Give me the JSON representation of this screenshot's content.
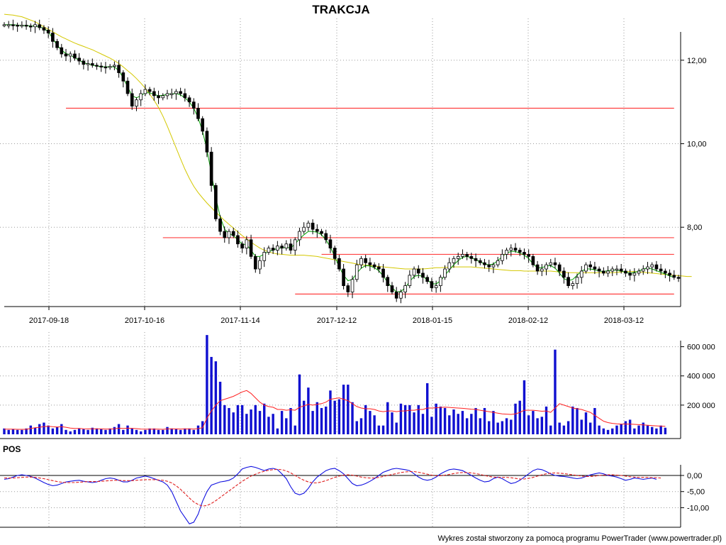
{
  "chart_data": [
    {
      "type": "candlestick",
      "title": "TRAKCJA",
      "x_tick_labels": [
        "2017-09-18",
        "2017-10-16",
        "2017-11-14",
        "2017-12-12",
        "2018-01-15",
        "2018-02-12",
        "2018-03-12"
      ],
      "y_tick_labels": [
        "12,00",
        "10,00",
        "8,00"
      ],
      "y_ticks": [
        12,
        10,
        8
      ],
      "ylim": [
        6.1,
        13.0
      ],
      "grid": true,
      "up_color": "#ffffff",
      "down_color": "#000000",
      "ma_short_color": "#00a000",
      "ma_long_color": "#d4c800",
      "support_resistance_color": "#ff4040",
      "horizontal_levels": [
        {
          "value": 10.85,
          "from_bar": 14,
          "to_bar": 152
        },
        {
          "value": 7.75,
          "from_bar": 36,
          "to_bar": 152
        },
        {
          "value": 7.35,
          "from_bar": 72,
          "to_bar": 152
        },
        {
          "value": 6.4,
          "from_bar": 66,
          "to_bar": 152
        }
      ],
      "closes": [
        12.85,
        12.85,
        12.84,
        12.83,
        12.84,
        12.82,
        12.8,
        12.85,
        12.78,
        12.72,
        12.65,
        12.45,
        12.3,
        12.15,
        12.1,
        12.15,
        12.05,
        11.98,
        11.9,
        11.92,
        11.88,
        11.86,
        11.84,
        11.83,
        11.85,
        11.88,
        11.7,
        11.5,
        11.2,
        10.9,
        11.05,
        11.2,
        11.3,
        11.25,
        11.15,
        11.1,
        11.15,
        11.2,
        11.2,
        11.25,
        11.2,
        11.1,
        11.0,
        10.85,
        10.6,
        10.3,
        9.8,
        9.0,
        8.2,
        7.9,
        7.75,
        7.9,
        7.8,
        7.6,
        7.5,
        7.7,
        7.3,
        7.0,
        7.2,
        7.4,
        7.5,
        7.45,
        7.55,
        7.5,
        7.6,
        7.45,
        7.7,
        7.9,
        8.0,
        8.1,
        7.95,
        7.9,
        7.85,
        7.7,
        7.5,
        7.25,
        7.0,
        6.6,
        6.45,
        6.75,
        7.1,
        7.25,
        7.15,
        7.1,
        7.05,
        7.0,
        6.8,
        6.6,
        6.45,
        6.3,
        6.45,
        6.6,
        6.85,
        7.0,
        6.9,
        6.8,
        6.7,
        6.55,
        6.6,
        6.8,
        7.0,
        7.15,
        7.25,
        7.3,
        7.35,
        7.3,
        7.25,
        7.2,
        7.15,
        7.1,
        7.05,
        7.1,
        7.2,
        7.35,
        7.45,
        7.5,
        7.45,
        7.4,
        7.35,
        7.3,
        7.1,
        6.95,
        7.0,
        7.1,
        7.15,
        7.1,
        6.95,
        6.8,
        6.6,
        6.65,
        6.8,
        6.95,
        7.1,
        7.05,
        7.0,
        6.95,
        6.9,
        6.95,
        7.0,
        7.0,
        6.95,
        6.9,
        6.85,
        6.9,
        6.95,
        7.0,
        7.05,
        7.1,
        7.0,
        6.95,
        6.9,
        6.85,
        6.8,
        6.78
      ],
      "ma_short": [
        12.85,
        12.85,
        12.85,
        12.84,
        12.83,
        12.83,
        12.82,
        12.82,
        12.8,
        12.76,
        12.68,
        12.52,
        12.36,
        12.24,
        12.16,
        12.12,
        12.06,
        12.0,
        11.94,
        11.91,
        11.88,
        11.86,
        11.85,
        11.84,
        11.85,
        11.84,
        11.75,
        11.58,
        11.36,
        11.15,
        11.1,
        11.15,
        11.22,
        11.22,
        11.18,
        11.15,
        11.16,
        11.18,
        11.2,
        11.2,
        11.17,
        11.1,
        11.0,
        10.85,
        10.62,
        10.3,
        9.85,
        9.3,
        8.7,
        8.25,
        7.95,
        7.85,
        7.8,
        7.7,
        7.6,
        7.58,
        7.45,
        7.3,
        7.3,
        7.36,
        7.42,
        7.45,
        7.5,
        7.5,
        7.52,
        7.5,
        7.6,
        7.72,
        7.82,
        7.9,
        7.9,
        7.88,
        7.82,
        7.7,
        7.52,
        7.3,
        7.05,
        6.85,
        6.72,
        6.75,
        6.9,
        7.02,
        7.08,
        7.07,
        7.03,
        6.96,
        6.83,
        6.68,
        6.55,
        6.45,
        6.46,
        6.55,
        6.7,
        6.82,
        6.85,
        6.82,
        6.74,
        6.65,
        6.64,
        6.72,
        6.85,
        6.98,
        7.1,
        7.2,
        7.28,
        7.3,
        7.27,
        7.22,
        7.17,
        7.12,
        7.1,
        7.12,
        7.2,
        7.3,
        7.38,
        7.42,
        7.42,
        7.38,
        7.33,
        7.25,
        7.12,
        7.03,
        7.03,
        7.07,
        7.08,
        7.02,
        6.9,
        6.77,
        6.72,
        6.75,
        6.85,
        6.95,
        7.0,
        7.0,
        6.98,
        6.95,
        6.94,
        6.96,
        6.97,
        6.97,
        6.95,
        6.92,
        6.9,
        6.92,
        6.95,
        7.0,
        7.02,
        7.0,
        6.96,
        6.92,
        6.88,
        6.83,
        6.8
      ],
      "ma_long": [
        13.1,
        13.09,
        13.08,
        13.06,
        13.04,
        13.0,
        12.96,
        12.92,
        12.86,
        12.8,
        12.74,
        12.68,
        12.62,
        12.56,
        12.51,
        12.46,
        12.41,
        12.37,
        12.33,
        12.29,
        12.25,
        12.2,
        12.15,
        12.1,
        12.05,
        11.99,
        11.92,
        11.84,
        11.75,
        11.66,
        11.56,
        11.45,
        11.33,
        11.19,
        11.04,
        10.87,
        10.66,
        10.42,
        10.16,
        9.9,
        9.64,
        9.39,
        9.17,
        8.98,
        8.83,
        8.7,
        8.58,
        8.47,
        8.36,
        8.26,
        8.16,
        8.07,
        7.98,
        7.89,
        7.8,
        7.72,
        7.64,
        7.57,
        7.5,
        7.45,
        7.41,
        7.38,
        7.36,
        7.35,
        7.34,
        7.33,
        7.33,
        7.33,
        7.33,
        7.32,
        7.31,
        7.3,
        7.28,
        7.26,
        7.24,
        7.22,
        7.2,
        7.18,
        7.16,
        7.14,
        7.12,
        7.1,
        7.09,
        7.08,
        7.07,
        7.06,
        7.05,
        7.04,
        7.03,
        7.02,
        7.01,
        7.0,
        7.0,
        7.0,
        7.0,
        7.0,
        7.01,
        7.02,
        7.03,
        7.03,
        7.04,
        7.04,
        7.05,
        7.05,
        7.05,
        7.05,
        7.05,
        7.04,
        7.03,
        7.02,
        7.01,
        7.0,
        6.99,
        6.98,
        6.97,
        6.96,
        6.96,
        6.96,
        6.95,
        6.95,
        6.95,
        6.95,
        6.95,
        6.95,
        6.95,
        6.94,
        6.93,
        6.92,
        6.91,
        6.91,
        6.91,
        6.91,
        6.91,
        6.91,
        6.91,
        6.91,
        6.91,
        6.91,
        6.91,
        6.92,
        6.93,
        6.94,
        6.94,
        6.94,
        6.93,
        6.92,
        6.91,
        6.9,
        6.89,
        6.88,
        6.87,
        6.86,
        6.85,
        6.84,
        6.83,
        6.82,
        6.82
      ]
    },
    {
      "type": "bar",
      "y_tick_labels": [
        "600 000",
        "400 000",
        "200 000"
      ],
      "y_ticks": [
        600000,
        400000,
        200000
      ],
      "ylim": [
        0,
        700000
      ],
      "bar_color": "#1010d0",
      "average_color": "#ff2020",
      "volumes": [
        40000,
        30000,
        35000,
        30000,
        30000,
        40000,
        60000,
        45000,
        70000,
        80000,
        60000,
        40000,
        50000,
        70000,
        30000,
        20000,
        30000,
        40000,
        35000,
        30000,
        45000,
        40000,
        35000,
        30000,
        40000,
        50000,
        70000,
        30000,
        60000,
        40000,
        30000,
        20000,
        30000,
        40000,
        40000,
        30000,
        30000,
        50000,
        40000,
        35000,
        30000,
        40000,
        40000,
        30000,
        60000,
        90000,
        680000,
        530000,
        500000,
        360000,
        200000,
        180000,
        150000,
        200000,
        200000,
        140000,
        170000,
        200000,
        160000,
        210000,
        120000,
        140000,
        40000,
        160000,
        110000,
        180000,
        60000,
        410000,
        230000,
        320000,
        160000,
        220000,
        180000,
        190000,
        300000,
        230000,
        240000,
        340000,
        340000,
        220000,
        90000,
        110000,
        200000,
        160000,
        130000,
        60000,
        60000,
        220000,
        150000,
        80000,
        210000,
        200000,
        200000,
        150000,
        200000,
        140000,
        350000,
        120000,
        210000,
        190000,
        180000,
        130000,
        170000,
        140000,
        160000,
        110000,
        140000,
        180000,
        110000,
        180000,
        90000,
        160000,
        80000,
        90000,
        110000,
        100000,
        210000,
        230000,
        370000,
        130000,
        160000,
        110000,
        120000,
        190000,
        60000,
        580000,
        80000,
        60000,
        90000,
        190000,
        180000,
        100000,
        150000,
        80000,
        180000,
        60000,
        40000,
        30000,
        40000,
        60000,
        70000,
        90000,
        100000,
        40000,
        60000,
        80000,
        60000,
        50000,
        40000,
        60000,
        45000
      ],
      "average": [
        35000,
        35000,
        35000,
        34000,
        34000,
        34000,
        40000,
        45000,
        48000,
        53000,
        55000,
        52000,
        50000,
        52000,
        48000,
        43000,
        40000,
        40000,
        38000,
        37000,
        38000,
        38000,
        37000,
        36000,
        36000,
        38000,
        42000,
        40000,
        42000,
        41000,
        39000,
        36000,
        35000,
        35000,
        36000,
        35000,
        34000,
        37000,
        37000,
        37000,
        36000,
        37000,
        37000,
        36000,
        39000,
        45000,
        110000,
        160000,
        200000,
        230000,
        240000,
        250000,
        260000,
        275000,
        290000,
        300000,
        280000,
        250000,
        220000,
        200000,
        190000,
        185000,
        170000,
        170000,
        165000,
        168000,
        165000,
        185000,
        195000,
        205000,
        200000,
        205000,
        210000,
        220000,
        240000,
        245000,
        250000,
        240000,
        230000,
        210000,
        190000,
        180000,
        175000,
        175000,
        170000,
        160000,
        155000,
        160000,
        160000,
        155000,
        160000,
        160000,
        165000,
        165000,
        170000,
        170000,
        180000,
        180000,
        182000,
        184000,
        186000,
        184000,
        182000,
        180000,
        178000,
        175000,
        172000,
        170000,
        165000,
        160000,
        155000,
        150000,
        145000,
        140000,
        138000,
        136000,
        140000,
        150000,
        165000,
        165000,
        165000,
        162000,
        158000,
        160000,
        150000,
        180000,
        210000,
        200000,
        190000,
        180000,
        175000,
        170000,
        160000,
        150000,
        130000,
        110000,
        90000,
        80000,
        75000,
        72000,
        70000,
        70000,
        70000,
        68000,
        66000,
        64000,
        62000,
        60000,
        58000,
        56000,
        55000
      ]
    },
    {
      "type": "line",
      "title": "POS",
      "y_tick_labels": [
        "0,00",
        "-5,00",
        "-10,00"
      ],
      "y_ticks": [
        0,
        -5,
        -10
      ],
      "ylim": [
        -16.5,
        5.5
      ],
      "series": [
        {
          "color": "#1010e0",
          "style": "solid",
          "values": [
            -1.2,
            -1.0,
            -0.5,
            0.0,
            0.2,
            0.0,
            -0.3,
            -0.8,
            -1.5,
            -2.2,
            -2.8,
            -3.2,
            -3.0,
            -2.5,
            -2.0,
            -1.8,
            -1.6,
            -1.5,
            -1.8,
            -2.0,
            -2.2,
            -2.0,
            -1.5,
            -1.0,
            -0.8,
            -1.0,
            -1.5,
            -2.0,
            -2.0,
            -1.5,
            -0.8,
            -0.5,
            -0.2,
            -0.5,
            -1.0,
            -1.5,
            -2.0,
            -3.0,
            -5.0,
            -8.0,
            -11.0,
            -13.0,
            -15.0,
            -14.5,
            -12.0,
            -8.0,
            -5.0,
            -3.0,
            -2.5,
            -2.0,
            -1.8,
            -1.5,
            -0.8,
            0.5,
            2.0,
            2.5,
            2.8,
            2.5,
            2.0,
            1.5,
            2.0,
            2.2,
            1.8,
            0.5,
            -1.0,
            -3.5,
            -5.5,
            -6.0,
            -5.5,
            -4.0,
            -2.0,
            -0.5,
            0.5,
            1.5,
            2.0,
            2.2,
            1.5,
            0.5,
            -1.0,
            -2.5,
            -3.2,
            -3.0,
            -2.5,
            -1.8,
            -1.0,
            0.0,
            1.0,
            1.5,
            2.0,
            2.2,
            2.0,
            1.8,
            1.5,
            0.5,
            -0.5,
            -1.2,
            -1.5,
            -1.2,
            -0.5,
            0.5,
            1.2,
            1.8,
            2.0,
            1.8,
            1.5,
            0.8,
            0.0,
            -0.8,
            -1.5,
            -2.0,
            -1.8,
            -1.0,
            -0.5,
            -1.0,
            -1.8,
            -2.5,
            -2.2,
            -1.5,
            -0.5,
            0.5,
            1.5,
            2.0,
            1.8,
            1.2,
            0.5,
            0.0,
            -0.2,
            -0.3,
            -0.5,
            -0.8,
            -1.0,
            -0.8,
            -0.3,
            0.2,
            0.5,
            0.8,
            0.5,
            0.0,
            -0.2,
            -0.5,
            -1.0,
            -1.5,
            -1.2,
            -0.8,
            -1.0,
            -1.2,
            -1.0,
            -0.8,
            -1.2
          ]
        },
        {
          "color": "#e02020",
          "style": "dashed",
          "values": [
            -0.8,
            -0.8,
            -0.8,
            -0.7,
            -0.6,
            -0.5,
            -0.5,
            -0.6,
            -0.8,
            -1.0,
            -1.3,
            -1.6,
            -1.9,
            -2.1,
            -2.2,
            -2.2,
            -2.2,
            -2.1,
            -2.0,
            -1.9,
            -1.9,
            -1.9,
            -1.8,
            -1.7,
            -1.6,
            -1.5,
            -1.5,
            -1.6,
            -1.6,
            -1.6,
            -1.5,
            -1.4,
            -1.3,
            -1.3,
            -1.3,
            -1.4,
            -1.5,
            -1.8,
            -2.3,
            -3.2,
            -4.3,
            -5.6,
            -7.0,
            -8.2,
            -9.0,
            -9.5,
            -9.3,
            -8.7,
            -7.8,
            -6.8,
            -5.8,
            -4.8,
            -3.8,
            -2.8,
            -1.8,
            -1.0,
            -0.2,
            0.4,
            0.9,
            1.3,
            1.6,
            1.8,
            1.9,
            1.8,
            1.4,
            0.8,
            0.0,
            -0.8,
            -1.5,
            -2.0,
            -2.3,
            -2.3,
            -2.0,
            -1.6,
            -1.1,
            -0.6,
            -0.2,
            0.1,
            0.2,
            0.1,
            -0.2,
            -0.5,
            -0.7,
            -0.8,
            -0.8,
            -0.6,
            -0.3,
            0.0,
            0.3,
            0.6,
            0.9,
            1.1,
            1.2,
            1.2,
            1.0,
            0.7,
            0.4,
            0.1,
            -0.1,
            -0.1,
            0.1,
            0.3,
            0.6,
            0.8,
            0.9,
            0.9,
            0.8,
            0.6,
            0.3,
            0.0,
            -0.3,
            -0.5,
            -0.6,
            -0.6,
            -0.6,
            -0.7,
            -0.9,
            -1.1,
            -1.1,
            -0.9,
            -0.6,
            -0.2,
            0.2,
            0.5,
            0.7,
            0.8,
            0.7,
            0.6,
            0.4,
            0.2,
            0.0,
            -0.2,
            -0.3,
            -0.3,
            -0.2,
            0.0,
            0.1,
            0.2,
            0.2,
            0.1,
            0.0,
            -0.2,
            -0.4,
            -0.5,
            -0.6,
            -0.6,
            -0.6,
            -0.7,
            -0.7,
            -0.8
          ]
        }
      ]
    }
  ],
  "footer": "Wykres został stworzony za pomocą programu PowerTrader (www.powertrader.pl)"
}
